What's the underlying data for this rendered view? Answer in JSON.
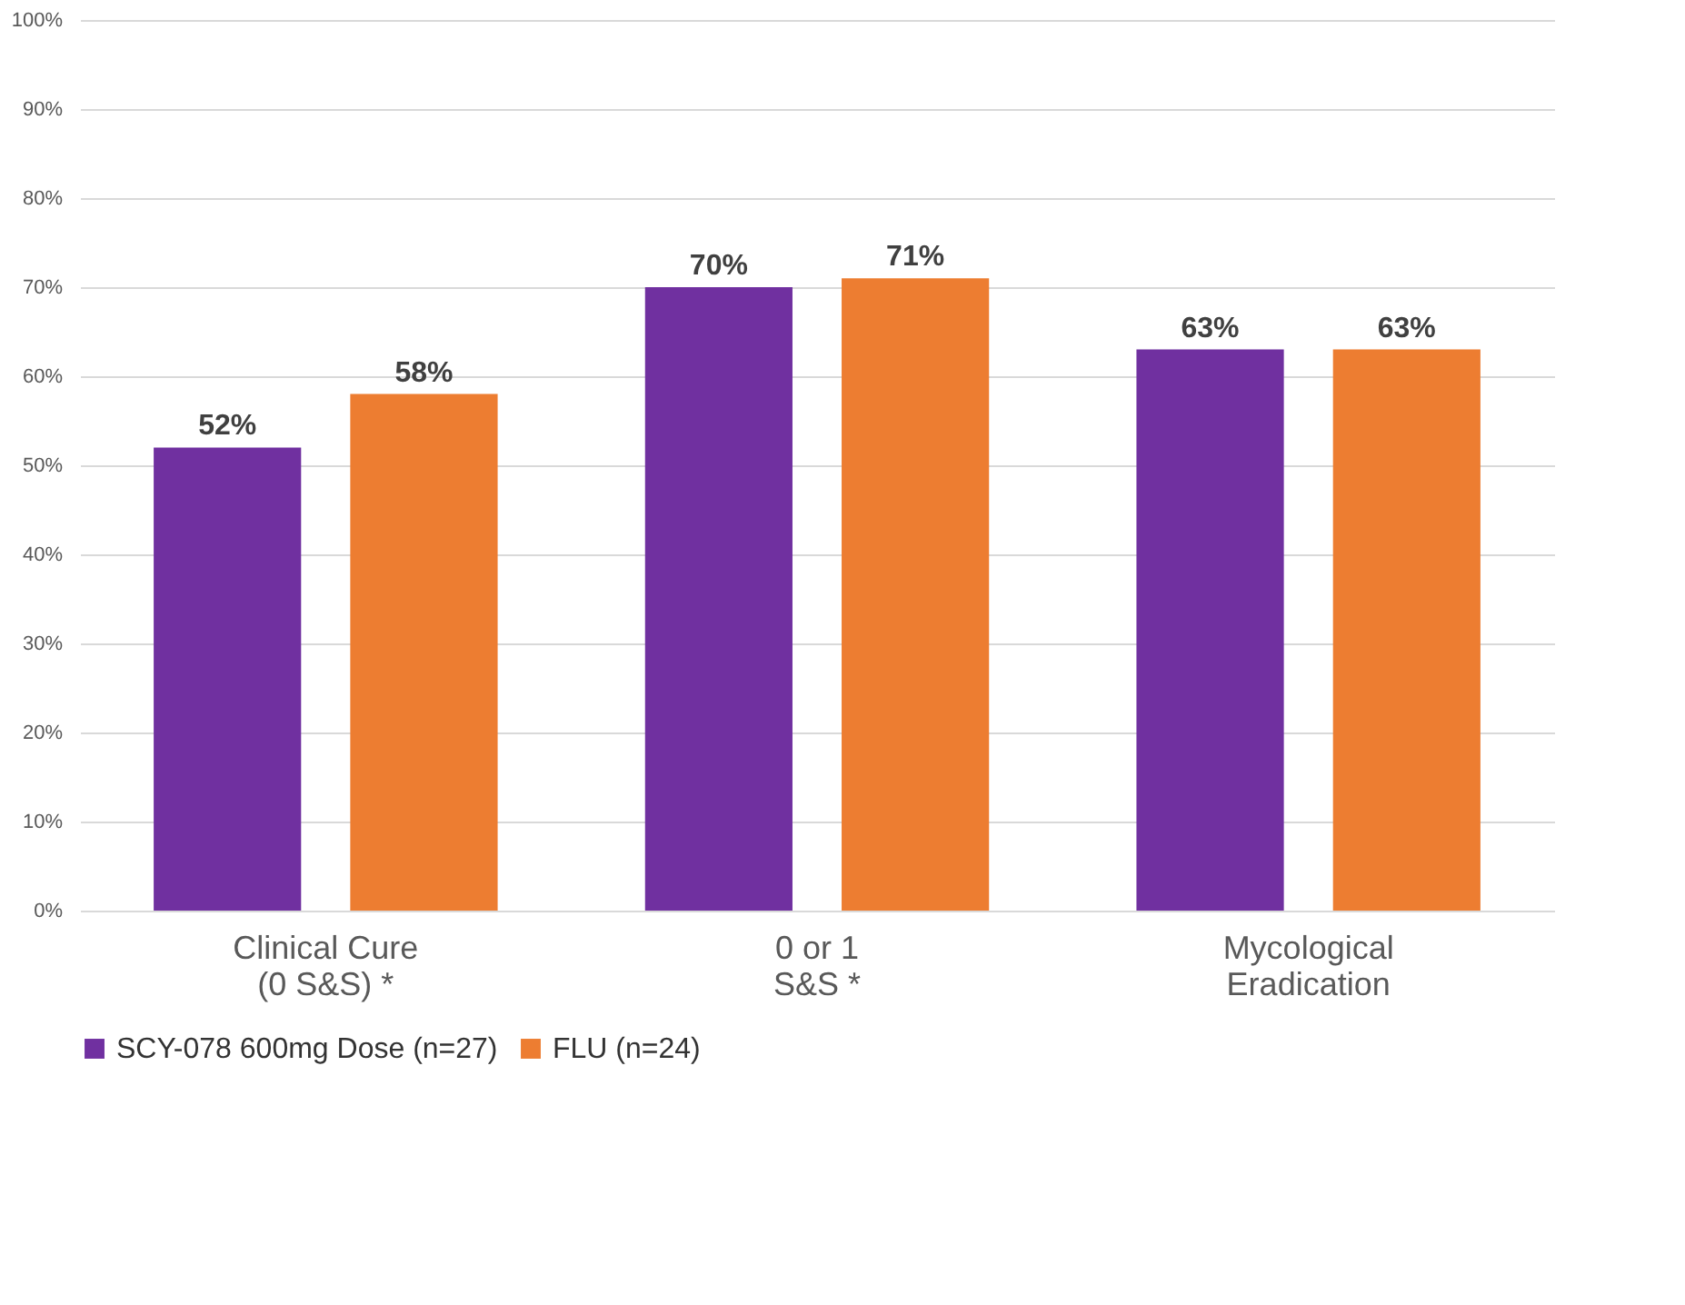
{
  "chart_data": {
    "type": "bar",
    "categories": [
      "Clinical Cure\n(0 S&S) *",
      "0 or 1\nS&S *",
      "Mycological\nEradication"
    ],
    "series": [
      {
        "name": "SCY-078 600mg Dose (n=27)",
        "color": "#7030a0",
        "values": [
          52,
          70,
          63
        ]
      },
      {
        "name": "FLU (n=24)",
        "color": "#ed7d31",
        "values": [
          58,
          71,
          63
        ]
      }
    ],
    "ylim": [
      0,
      100
    ],
    "yticks": [
      {
        "value": 0,
        "label": "0%"
      },
      {
        "value": 10,
        "label": "10%"
      },
      {
        "value": 20,
        "label": "20%"
      },
      {
        "value": 30,
        "label": "30%"
      },
      {
        "value": 40,
        "label": "40%"
      },
      {
        "value": 50,
        "label": "50%"
      },
      {
        "value": 60,
        "label": "60%"
      },
      {
        "value": 70,
        "label": "70%"
      },
      {
        "value": 80,
        "label": "80%"
      },
      {
        "value": 90,
        "label": "90%"
      },
      {
        "value": 100,
        "label": "100%"
      }
    ],
    "value_labels": [
      [
        "52%",
        "70%",
        "63%"
      ],
      [
        "58%",
        "71%",
        "63%"
      ]
    ],
    "grid": "y",
    "legend": "bottom"
  }
}
